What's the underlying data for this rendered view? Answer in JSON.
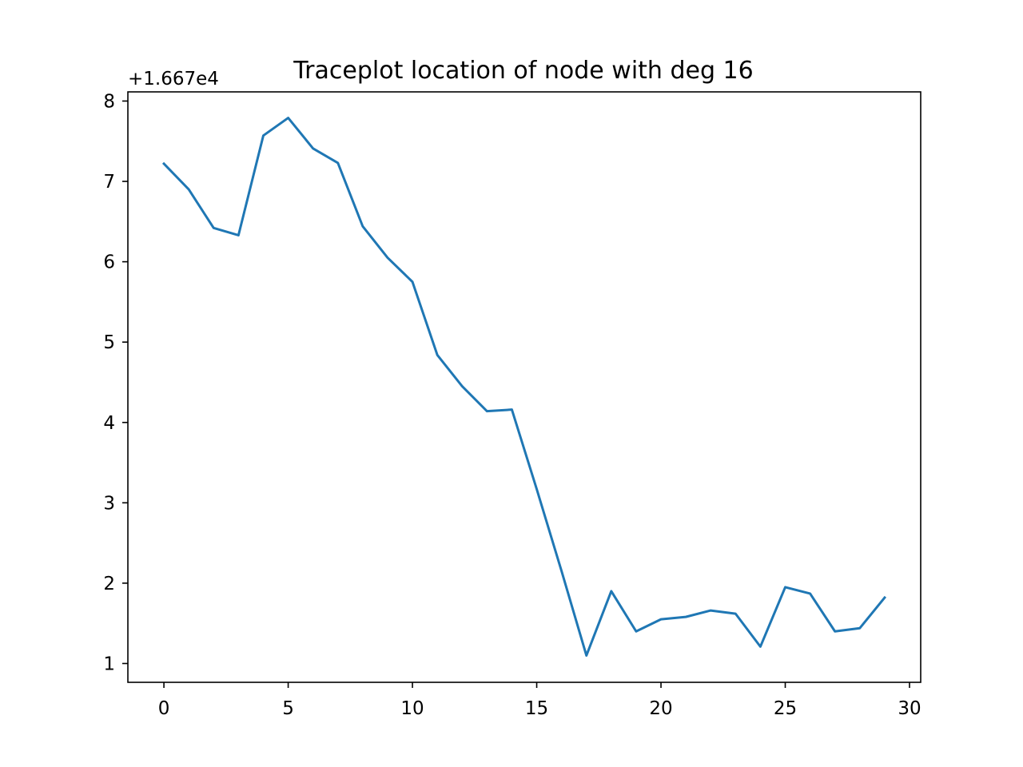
{
  "chart_data": {
    "type": "line",
    "title": "Traceplot location of node with deg 16",
    "xlabel": "",
    "ylabel": "",
    "y_offset_label": "+1.667e4",
    "xlim": [
      -1.45,
      30.45
    ],
    "ylim": [
      0.766,
      8.114
    ],
    "xticks": [
      0,
      5,
      10,
      15,
      20,
      25,
      30
    ],
    "yticks": [
      1,
      2,
      3,
      4,
      5,
      6,
      7,
      8
    ],
    "grid": false,
    "series": [
      {
        "color": "#1f77b4",
        "x": [
          0,
          1,
          2,
          3,
          4,
          5,
          6,
          7,
          8,
          9,
          10,
          11,
          12,
          13,
          14,
          15,
          16,
          17,
          18,
          19,
          20,
          21,
          22,
          23,
          24,
          25,
          26,
          27,
          28,
          29
        ],
        "y": [
          7.22,
          6.9,
          6.42,
          6.33,
          7.57,
          7.79,
          7.41,
          7.23,
          6.44,
          6.05,
          5.75,
          4.84,
          4.45,
          4.14,
          4.16,
          3.17,
          2.15,
          1.1,
          1.9,
          1.4,
          1.55,
          1.58,
          1.66,
          1.62,
          1.21,
          1.95,
          1.87,
          1.4,
          1.44,
          1.82
        ]
      }
    ]
  }
}
